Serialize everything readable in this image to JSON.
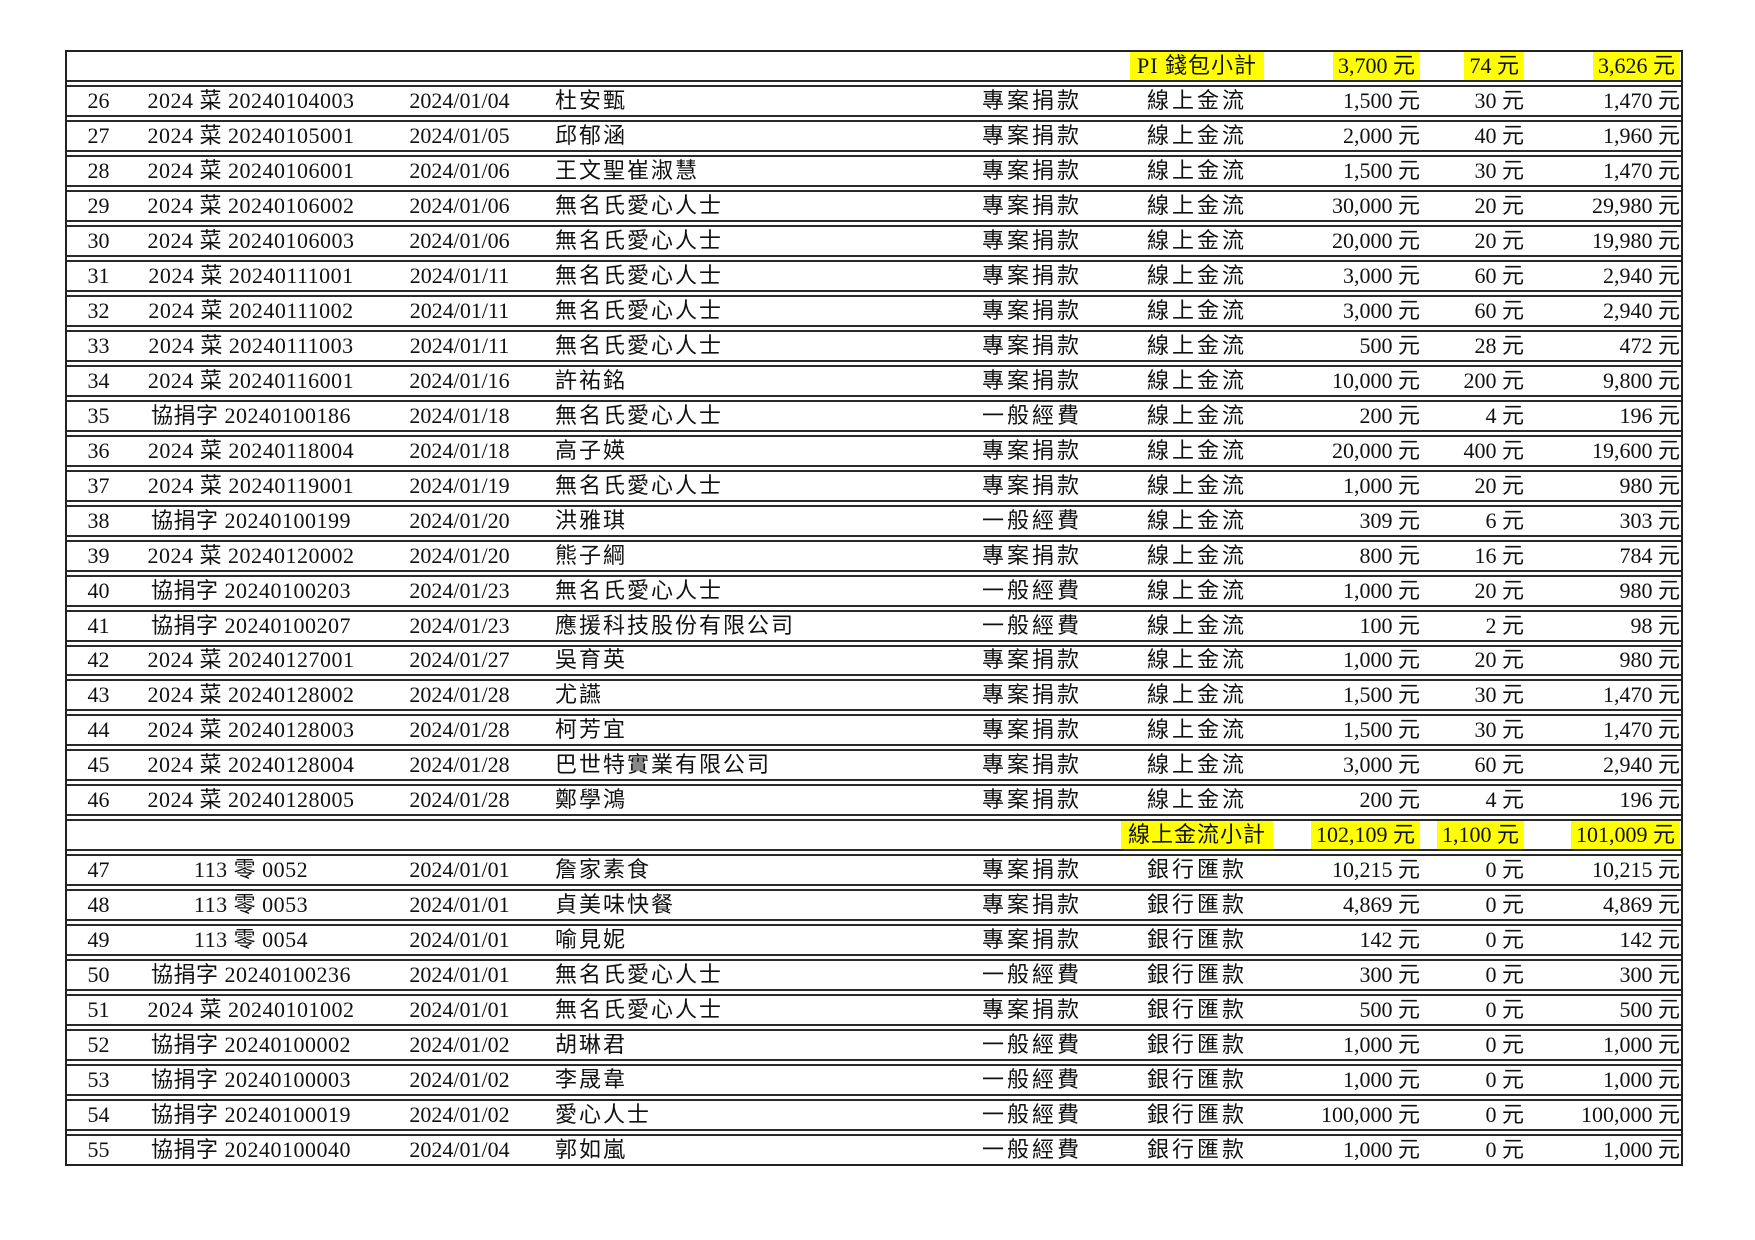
{
  "table": {
    "highlight_color": "#ffff00",
    "currency_suffix": "元",
    "column_names": [
      "row-number",
      "document-number",
      "date",
      "donor-name",
      "category",
      "payment-method",
      "amount",
      "fee",
      "net-amount"
    ],
    "rows": [
      {
        "type": "subtotal",
        "method": "PI 錢包小計",
        "amount": "3,700 元",
        "fee": "74 元",
        "net": "3,626 元"
      },
      {
        "type": "data",
        "num": "26",
        "doc": "2024 菜 20240104003",
        "date": "2024/01/04",
        "name": "杜安甄",
        "category": "專案捐款",
        "method": "線上金流",
        "amount": "1,500 元",
        "fee": "30 元",
        "net": "1,470 元"
      },
      {
        "type": "data",
        "num": "27",
        "doc": "2024 菜 20240105001",
        "date": "2024/01/05",
        "name": "邱郁涵",
        "category": "專案捐款",
        "method": "線上金流",
        "amount": "2,000 元",
        "fee": "40 元",
        "net": "1,960 元"
      },
      {
        "type": "data",
        "num": "28",
        "doc": "2024 菜 20240106001",
        "date": "2024/01/06",
        "name": "王文聖崔淑慧",
        "category": "專案捐款",
        "method": "線上金流",
        "amount": "1,500 元",
        "fee": "30 元",
        "net": "1,470 元"
      },
      {
        "type": "data",
        "num": "29",
        "doc": "2024 菜 20240106002",
        "date": "2024/01/06",
        "name": "無名氏愛心人士",
        "category": "專案捐款",
        "method": "線上金流",
        "amount": "30,000 元",
        "fee": "20 元",
        "net": "29,980 元"
      },
      {
        "type": "data",
        "num": "30",
        "doc": "2024 菜 20240106003",
        "date": "2024/01/06",
        "name": "無名氏愛心人士",
        "category": "專案捐款",
        "method": "線上金流",
        "amount": "20,000 元",
        "fee": "20 元",
        "net": "19,980 元"
      },
      {
        "type": "data",
        "num": "31",
        "doc": "2024 菜 20240111001",
        "date": "2024/01/11",
        "name": "無名氏愛心人士",
        "category": "專案捐款",
        "method": "線上金流",
        "amount": "3,000 元",
        "fee": "60 元",
        "net": "2,940 元"
      },
      {
        "type": "data",
        "num": "32",
        "doc": "2024 菜 20240111002",
        "date": "2024/01/11",
        "name": "無名氏愛心人士",
        "category": "專案捐款",
        "method": "線上金流",
        "amount": "3,000 元",
        "fee": "60 元",
        "net": "2,940 元"
      },
      {
        "type": "data",
        "num": "33",
        "doc": "2024 菜 20240111003",
        "date": "2024/01/11",
        "name": "無名氏愛心人士",
        "category": "專案捐款",
        "method": "線上金流",
        "amount": "500 元",
        "fee": "28 元",
        "net": "472 元"
      },
      {
        "type": "data",
        "num": "34",
        "doc": "2024 菜 20240116001",
        "date": "2024/01/16",
        "name": "許祐銘",
        "category": "專案捐款",
        "method": "線上金流",
        "amount": "10,000 元",
        "fee": "200 元",
        "net": "9,800 元"
      },
      {
        "type": "data",
        "num": "35",
        "doc": "協捐字 20240100186",
        "date": "2024/01/18",
        "name": "無名氏愛心人士",
        "category": "一般經費",
        "method": "線上金流",
        "amount": "200 元",
        "fee": "4 元",
        "net": "196 元"
      },
      {
        "type": "data",
        "num": "36",
        "doc": "2024 菜 20240118004",
        "date": "2024/01/18",
        "name": "高子媖",
        "category": "專案捐款",
        "method": "線上金流",
        "amount": "20,000 元",
        "fee": "400 元",
        "net": "19,600 元"
      },
      {
        "type": "data",
        "num": "37",
        "doc": "2024 菜 20240119001",
        "date": "2024/01/19",
        "name": "無名氏愛心人士",
        "category": "專案捐款",
        "method": "線上金流",
        "amount": "1,000 元",
        "fee": "20 元",
        "net": "980 元"
      },
      {
        "type": "data",
        "num": "38",
        "doc": "協捐字 20240100199",
        "date": "2024/01/20",
        "name": "洪雅琪",
        "category": "一般經費",
        "method": "線上金流",
        "amount": "309 元",
        "fee": "6 元",
        "net": "303 元"
      },
      {
        "type": "data",
        "num": "39",
        "doc": "2024 菜 20240120002",
        "date": "2024/01/20",
        "name": "熊子綱",
        "category": "專案捐款",
        "method": "線上金流",
        "amount": "800 元",
        "fee": "16 元",
        "net": "784 元"
      },
      {
        "type": "data",
        "num": "40",
        "doc": "協捐字 20240100203",
        "date": "2024/01/23",
        "name": "無名氏愛心人士",
        "category": "一般經費",
        "method": "線上金流",
        "amount": "1,000 元",
        "fee": "20 元",
        "net": "980 元"
      },
      {
        "type": "data",
        "num": "41",
        "doc": "協捐字 20240100207",
        "date": "2024/01/23",
        "name": "應援科技股份有限公司",
        "category": "一般經費",
        "method": "線上金流",
        "amount": "100 元",
        "fee": "2 元",
        "net": "98 元"
      },
      {
        "type": "data",
        "num": "42",
        "doc": "2024 菜 20240127001",
        "date": "2024/01/27",
        "name": "吳育英",
        "category": "專案捐款",
        "method": "線上金流",
        "amount": "1,000 元",
        "fee": "20 元",
        "net": "980 元"
      },
      {
        "type": "data",
        "num": "43",
        "doc": "2024 菜 20240128002",
        "date": "2024/01/28",
        "name": "尤讌",
        "category": "專案捐款",
        "method": "線上金流",
        "amount": "1,500 元",
        "fee": "30 元",
        "net": "1,470 元"
      },
      {
        "type": "data",
        "num": "44",
        "doc": "2024 菜 20240128003",
        "date": "2024/01/28",
        "name": "柯芳宜",
        "category": "專案捐款",
        "method": "線上金流",
        "amount": "1,500 元",
        "fee": "30 元",
        "net": "1,470 元"
      },
      {
        "type": "data",
        "num": "45",
        "doc": "2024 菜 20240128004",
        "date": "2024/01/28",
        "name": "巴世特實業有限公司",
        "category": "專案捐款",
        "method": "線上金流",
        "amount": "3,000 元",
        "fee": "60 元",
        "net": "2,940 元"
      },
      {
        "type": "data",
        "num": "46",
        "doc": "2024 菜 20240128005",
        "date": "2024/01/28",
        "name": "鄭學鴻",
        "category": "專案捐款",
        "method": "線上金流",
        "amount": "200 元",
        "fee": "4 元",
        "net": "196 元"
      },
      {
        "type": "subtotal",
        "method": "線上金流小計",
        "amount": "102,109 元",
        "fee": "1,100 元",
        "net": "101,009 元"
      },
      {
        "type": "data",
        "num": "47",
        "doc": "113 零 0052",
        "date": "2024/01/01",
        "name": "詹家素食",
        "category": "專案捐款",
        "method": "銀行匯款",
        "amount": "10,215 元",
        "fee": "0 元",
        "net": "10,215 元"
      },
      {
        "type": "data",
        "num": "48",
        "doc": "113 零 0053",
        "date": "2024/01/01",
        "name": "貞美味快餐",
        "category": "專案捐款",
        "method": "銀行匯款",
        "amount": "4,869 元",
        "fee": "0 元",
        "net": "4,869 元"
      },
      {
        "type": "data",
        "num": "49",
        "doc": "113 零 0054",
        "date": "2024/01/01",
        "name": "喻見妮",
        "category": "專案捐款",
        "method": "銀行匯款",
        "amount": "142 元",
        "fee": "0 元",
        "net": "142 元"
      },
      {
        "type": "data",
        "num": "50",
        "doc": "協捐字 20240100236",
        "date": "2024/01/01",
        "name": "無名氏愛心人士",
        "category": "一般經費",
        "method": "銀行匯款",
        "amount": "300 元",
        "fee": "0 元",
        "net": "300 元"
      },
      {
        "type": "data",
        "num": "51",
        "doc": "2024 菜 20240101002",
        "date": "2024/01/01",
        "name": "無名氏愛心人士",
        "category": "專案捐款",
        "method": "銀行匯款",
        "amount": "500 元",
        "fee": "0 元",
        "net": "500 元"
      },
      {
        "type": "data",
        "num": "52",
        "doc": "協捐字 20240100002",
        "date": "2024/01/02",
        "name": "胡琳君",
        "category": "一般經費",
        "method": "銀行匯款",
        "amount": "1,000 元",
        "fee": "0 元",
        "net": "1,000 元"
      },
      {
        "type": "data",
        "num": "53",
        "doc": "協捐字 20240100003",
        "date": "2024/01/02",
        "name": "李晟韋",
        "category": "一般經費",
        "method": "銀行匯款",
        "amount": "1,000 元",
        "fee": "0 元",
        "net": "1,000 元"
      },
      {
        "type": "data",
        "num": "54",
        "doc": "協捐字 20240100019",
        "date": "2024/01/02",
        "name": "愛心人士",
        "category": "一般經費",
        "method": "銀行匯款",
        "amount": "100,000 元",
        "fee": "0 元",
        "net": "100,000 元"
      },
      {
        "type": "data",
        "num": "55",
        "doc": "協捐字 20240100040",
        "date": "2024/01/04",
        "name": "郭如嵐",
        "category": "一般經費",
        "method": "銀行匯款",
        "amount": "1,000 元",
        "fee": "0 元",
        "net": "1,000 元"
      }
    ]
  }
}
